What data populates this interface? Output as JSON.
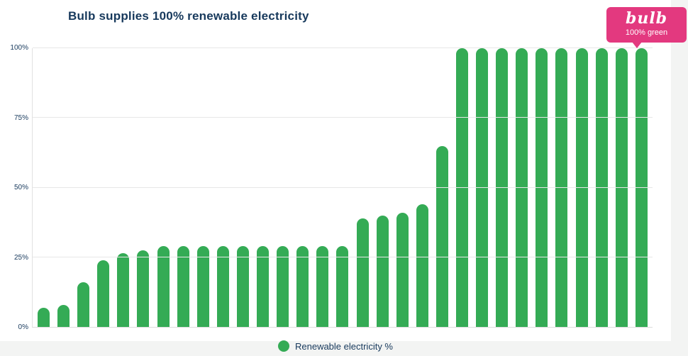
{
  "header": {
    "title": "Bulb supplies 100% renewable electricity"
  },
  "badge": {
    "logo": "bulb",
    "subtitle": "100% green"
  },
  "legend": {
    "label": "Renewable electricity %"
  },
  "colors": {
    "bar_green": "#34AB55",
    "badge_pink": "#E3397F",
    "navy": "#17395C",
    "grid": "#E7E7E7"
  },
  "chart_data": {
    "type": "bar",
    "title": "Bulb supplies 100% renewable electricity",
    "legend": "Renewable electricity %",
    "xlabel": "",
    "ylabel": "",
    "ylim": [
      0,
      100
    ],
    "yticks": [
      "0%",
      "25%",
      "50%",
      "75%",
      "100%"
    ],
    "grid": "horizontal",
    "legend_position": "bottom-center",
    "values": [
      7,
      8,
      16,
      24,
      26.5,
      27.5,
      29,
      29,
      29,
      29,
      29,
      29,
      29,
      29,
      29,
      29,
      39,
      40,
      41,
      44,
      65,
      100,
      100,
      100,
      100,
      100,
      100,
      100,
      100,
      100,
      100
    ]
  }
}
